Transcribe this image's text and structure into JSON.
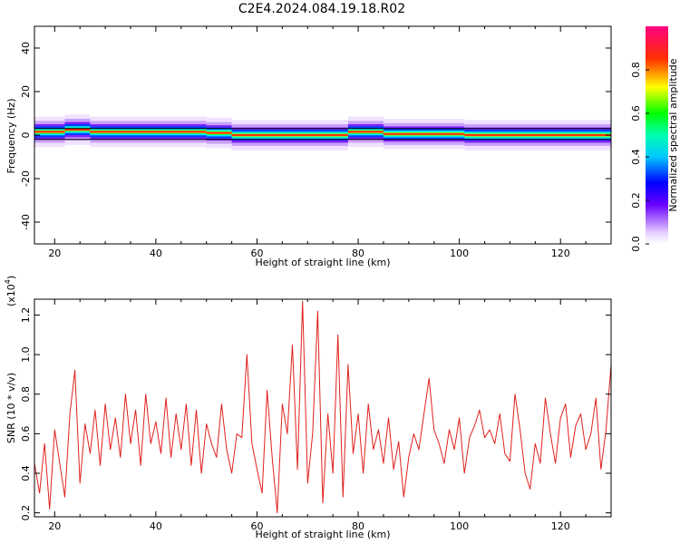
{
  "title": "C2E4.2024.084.19.18.R02",
  "chart_data": [
    {
      "type": "heatmap",
      "xlabel": "Height of straight line (km)",
      "ylabel": "Frequency (Hz)",
      "xlim": [
        16,
        130
      ],
      "ylim": [
        -50,
        50
      ],
      "xticks": [
        20,
        40,
        60,
        80,
        100,
        120
      ],
      "yticks": [
        -40,
        -20,
        0,
        20,
        40
      ],
      "colorbar": {
        "label": "Normalized spectral amplitude",
        "range": [
          0,
          1
        ],
        "ticks": [
          "0.0",
          "0.2",
          "0.4",
          "0.6",
          "0.8"
        ],
        "colors": [
          "#ffffff",
          "#6a00ff",
          "#0000ff",
          "#00ffff",
          "#00ff00",
          "#ffff00",
          "#ff0000",
          "#ff0080"
        ]
      },
      "ridge": [
        {
          "x": [
            16,
            22
          ],
          "freq": 1.5
        },
        {
          "x": [
            22,
            27
          ],
          "freq": 2.5
        },
        {
          "x": [
            27,
            50
          ],
          "freq": 1.5
        },
        {
          "x": [
            50,
            55
          ],
          "freq": 1.0
        },
        {
          "x": [
            55,
            78
          ],
          "freq": 0.0
        },
        {
          "x": [
            78,
            85
          ],
          "freq": 1.5
        },
        {
          "x": [
            85,
            101
          ],
          "freq": 0.5
        },
        {
          "x": [
            101,
            130
          ],
          "freq": 0.0
        }
      ],
      "band_lines_freq": [
        -2,
        3
      ]
    },
    {
      "type": "line",
      "xlabel": "Height of straight line (km)",
      "ylabel": "SNR (10 * v/v)",
      "yscale_label": "(x10",
      "yscale_exp": "4",
      "xlim": [
        16,
        130
      ],
      "ylim": [
        0.18,
        1.28
      ],
      "xticks": [
        20,
        40,
        60,
        80,
        100,
        120
      ],
      "yticks": [
        0.2,
        0.4,
        0.6,
        0.8,
        1.0,
        1.2
      ],
      "ytick_labels": [
        "0.2",
        "0.4",
        "0.6",
        "0.8",
        "1.0",
        "1.2"
      ],
      "color": "#e0201c",
      "x": [
        16,
        17,
        18,
        19,
        20,
        21,
        22,
        23,
        24,
        25,
        26,
        27,
        28,
        29,
        30,
        31,
        32,
        33,
        34,
        35,
        36,
        37,
        38,
        39,
        40,
        41,
        42,
        43,
        44,
        45,
        46,
        47,
        48,
        49,
        50,
        51,
        52,
        53,
        54,
        55,
        56,
        57,
        58,
        59,
        60,
        61,
        62,
        63,
        64,
        65,
        66,
        67,
        68,
        69,
        70,
        71,
        72,
        73,
        74,
        75,
        76,
        77,
        78,
        79,
        80,
        81,
        82,
        83,
        84,
        85,
        86,
        87,
        88,
        89,
        90,
        91,
        92,
        93,
        94,
        95,
        96,
        97,
        98,
        99,
        100,
        101,
        102,
        103,
        104,
        105,
        106,
        107,
        108,
        109,
        110,
        111,
        112,
        113,
        114,
        115,
        116,
        117,
        118,
        119,
        120,
        121,
        122,
        123,
        124,
        125,
        126,
        127,
        128,
        129,
        130
      ],
      "y": [
        0.45,
        0.3,
        0.55,
        0.22,
        0.62,
        0.45,
        0.28,
        0.7,
        0.92,
        0.35,
        0.65,
        0.5,
        0.72,
        0.44,
        0.75,
        0.52,
        0.68,
        0.48,
        0.8,
        0.55,
        0.72,
        0.44,
        0.8,
        0.55,
        0.66,
        0.5,
        0.78,
        0.48,
        0.7,
        0.52,
        0.75,
        0.44,
        0.72,
        0.4,
        0.65,
        0.55,
        0.48,
        0.75,
        0.52,
        0.4,
        0.6,
        0.58,
        1.0,
        0.55,
        0.42,
        0.3,
        0.82,
        0.48,
        0.2,
        0.75,
        0.6,
        1.05,
        0.42,
        1.27,
        0.35,
        0.6,
        1.22,
        0.25,
        0.7,
        0.4,
        1.1,
        0.28,
        0.95,
        0.5,
        0.7,
        0.4,
        0.75,
        0.52,
        0.62,
        0.45,
        0.68,
        0.42,
        0.56,
        0.28,
        0.48,
        0.6,
        0.52,
        0.7,
        0.88,
        0.62,
        0.55,
        0.45,
        0.62,
        0.52,
        0.68,
        0.4,
        0.58,
        0.64,
        0.72,
        0.58,
        0.62,
        0.55,
        0.7,
        0.5,
        0.46,
        0.8,
        0.62,
        0.4,
        0.32,
        0.55,
        0.45,
        0.78,
        0.6,
        0.45,
        0.68,
        0.75,
        0.48,
        0.64,
        0.7,
        0.52,
        0.6,
        0.78,
        0.42,
        0.62,
        0.95
      ]
    }
  ]
}
